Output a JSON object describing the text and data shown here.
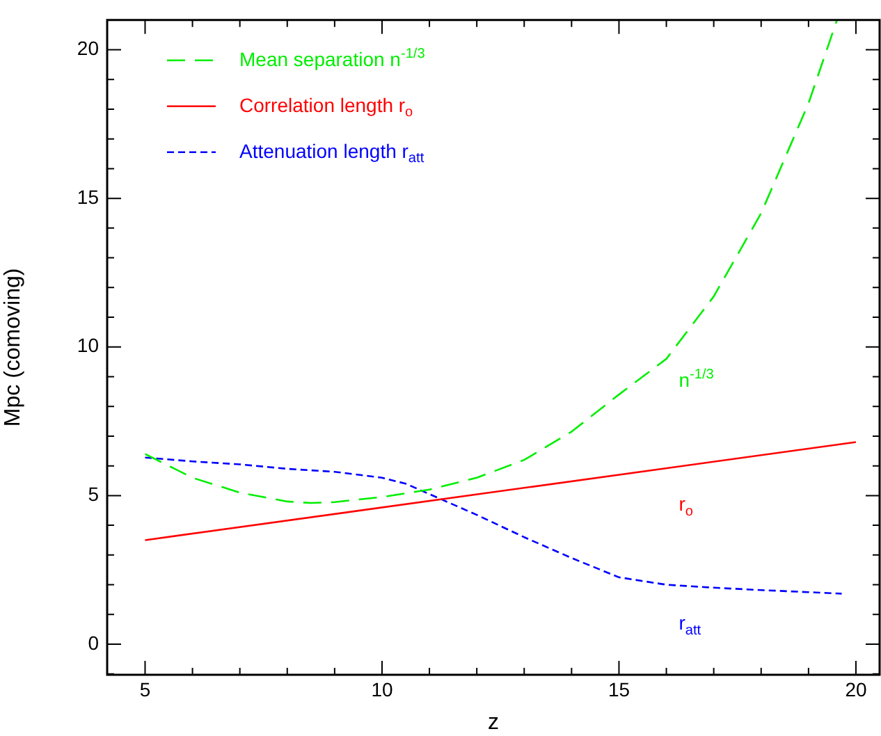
{
  "chart_data": {
    "type": "line",
    "xlabel": "z",
    "ylabel": "Mpc (comoving)",
    "xlim": [
      4.2,
      20.5
    ],
    "ylim": [
      -1.03,
      21
    ],
    "xticks": [
      {
        "value": 5,
        "label": "5"
      },
      {
        "value": 6,
        "label": null
      },
      {
        "value": 7,
        "label": null
      },
      {
        "value": 8,
        "label": null
      },
      {
        "value": 9,
        "label": null
      },
      {
        "value": 10,
        "label": "10"
      },
      {
        "value": 11,
        "label": null
      },
      {
        "value": 12,
        "label": null
      },
      {
        "value": 13,
        "label": null
      },
      {
        "value": 14,
        "label": null
      },
      {
        "value": 15,
        "label": "15"
      },
      {
        "value": 16,
        "label": null
      },
      {
        "value": 17,
        "label": null
      },
      {
        "value": 18,
        "label": null
      },
      {
        "value": 19,
        "label": null
      },
      {
        "value": 20,
        "label": "20"
      }
    ],
    "yticks": [
      {
        "value": -1,
        "label": null
      },
      {
        "value": 0,
        "label": "0"
      },
      {
        "value": 1,
        "label": null
      },
      {
        "value": 2,
        "label": null
      },
      {
        "value": 3,
        "label": null
      },
      {
        "value": 4,
        "label": null
      },
      {
        "value": 5,
        "label": "5"
      },
      {
        "value": 6,
        "label": null
      },
      {
        "value": 7,
        "label": null
      },
      {
        "value": 8,
        "label": null
      },
      {
        "value": 9,
        "label": null
      },
      {
        "value": 10,
        "label": "10"
      },
      {
        "value": 11,
        "label": null
      },
      {
        "value": 12,
        "label": null
      },
      {
        "value": 13,
        "label": null
      },
      {
        "value": 14,
        "label": null
      },
      {
        "value": 15,
        "label": "15"
      },
      {
        "value": 16,
        "label": null
      },
      {
        "value": 17,
        "label": null
      },
      {
        "value": 18,
        "label": null
      },
      {
        "value": 19,
        "label": null
      },
      {
        "value": 20,
        "label": "20"
      }
    ],
    "grid": false,
    "legend": "top left",
    "marker": "none",
    "series": [
      {
        "name": "Mean separation n$^{-1/3}$",
        "color": "#00ee00",
        "line_style": "dashed",
        "x": [
          5,
          6,
          7,
          8,
          8.5,
          9,
          10,
          11,
          12,
          13,
          14,
          15,
          16,
          17,
          18,
          19,
          19.6
        ],
        "values": [
          6.4,
          5.6,
          5.1,
          4.8,
          4.75,
          4.78,
          4.95,
          5.2,
          5.6,
          6.2,
          7.15,
          8.4,
          9.6,
          11.7,
          14.5,
          18.2,
          21
        ]
      },
      {
        "name": "Correlation length r$_{o}$",
        "color": "#ff0000",
        "line_style": "solid",
        "x": [
          5,
          20
        ],
        "values": [
          3.5,
          6.8
        ]
      },
      {
        "name": "Attenuation length r$_{att}$",
        "color": "#0000ff",
        "line_style": "dotted",
        "x": [
          5,
          6,
          7,
          8,
          9,
          10,
          10.5,
          11,
          12,
          13,
          14,
          15,
          16,
          17,
          18,
          19,
          19.7
        ],
        "values": [
          6.28,
          6.15,
          6.05,
          5.9,
          5.8,
          5.6,
          5.4,
          5.05,
          4.35,
          3.6,
          2.9,
          2.25,
          2.0,
          1.9,
          1.82,
          1.75,
          1.7
        ]
      }
    ],
    "annotations": [
      "n$^{-1/3}$",
      "r$_{o}$",
      "r$_{att}$"
    ]
  }
}
